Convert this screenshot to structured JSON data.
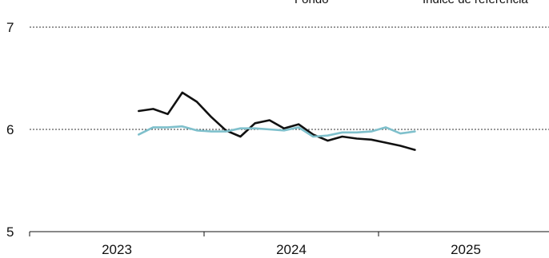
{
  "chart_data": {
    "type": "line",
    "title": "",
    "xlabel": "",
    "ylabel": "",
    "ylim": [
      5,
      7
    ],
    "yticks": [
      5,
      6,
      7
    ],
    "x_ticks": [
      "2023",
      "2024",
      "2025"
    ],
    "grid": "horizontal-dotted",
    "legend_position": "top-right",
    "x": [
      "2023-06",
      "2023-07",
      "2023-08",
      "2023-09",
      "2023-10",
      "2023-11",
      "2023-12",
      "2024-01",
      "2024-02",
      "2024-03",
      "2024-04",
      "2024-05",
      "2024-06",
      "2024-07",
      "2024-08",
      "2024-09",
      "2024-10",
      "2024-11",
      "2024-12",
      "2025-01",
      "2025-02"
    ],
    "series": [
      {
        "name": "Fondo",
        "color": "#111111",
        "values": [
          6.18,
          6.2,
          6.15,
          6.36,
          6.27,
          6.12,
          5.99,
          5.93,
          6.06,
          6.09,
          6.01,
          6.05,
          5.95,
          5.89,
          5.93,
          5.91,
          5.9,
          5.87,
          5.84,
          5.8,
          null
        ]
      },
      {
        "name": "Índice de referencia",
        "color": "#7fc0cc",
        "values": [
          5.95,
          6.02,
          6.02,
          6.03,
          5.99,
          5.98,
          5.98,
          6.01,
          6.01,
          6.0,
          5.99,
          6.02,
          5.93,
          5.94,
          5.97,
          5.97,
          5.98,
          6.02,
          5.96,
          5.98,
          null
        ]
      }
    ]
  }
}
